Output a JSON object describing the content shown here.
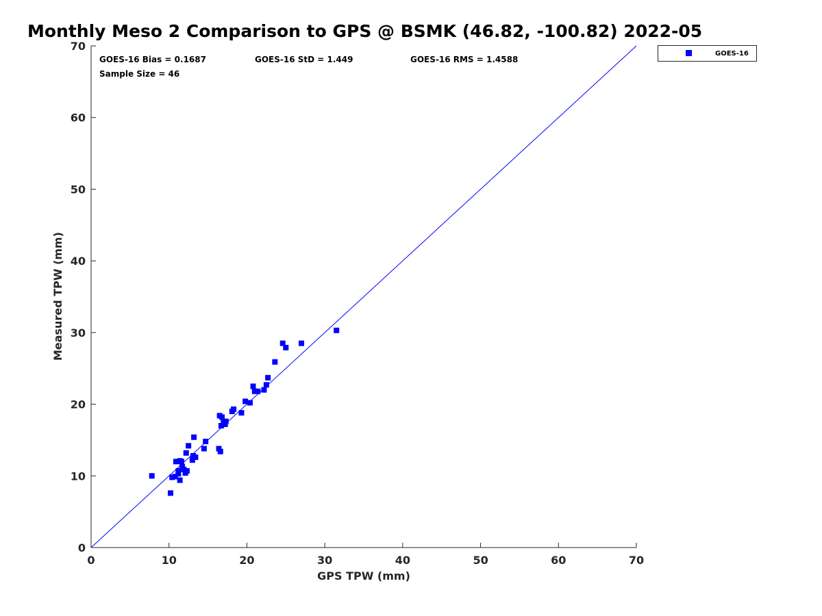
{
  "chart_data": {
    "type": "scatter",
    "title": "Monthly Meso 2 Comparison to GPS @ BSMK (46.82, -100.82) 2022-05",
    "xlabel": "GPS TPW (mm)",
    "ylabel": "Measured TPW (mm)",
    "xlim": [
      0,
      70
    ],
    "ylim": [
      0,
      70
    ],
    "xticks": [
      0,
      10,
      20,
      30,
      40,
      50,
      60,
      70
    ],
    "yticks": [
      0,
      10,
      20,
      30,
      40,
      50,
      60,
      70
    ],
    "grid": false,
    "legend_position": "top-right-outside",
    "reference_line": {
      "from": [
        0,
        0
      ],
      "to": [
        70,
        70
      ],
      "color": "#0000ff"
    },
    "stats": {
      "bias": "GOES-16 Bias = 0.1687",
      "std": "GOES-16 StD = 1.449",
      "rms": "GOES-16 RMS = 1.4588",
      "sample": "Sample Size = 46"
    },
    "series": [
      {
        "name": "GOES-16",
        "color": "#0000ff",
        "marker": "square",
        "points": [
          [
            7.8,
            10.0
          ],
          [
            10.2,
            7.6
          ],
          [
            10.4,
            9.8
          ],
          [
            10.8,
            9.9
          ],
          [
            10.9,
            12.0
          ],
          [
            11.2,
            10.3
          ],
          [
            11.2,
            10.7
          ],
          [
            11.4,
            9.4
          ],
          [
            11.4,
            12.1
          ],
          [
            11.6,
            12.0
          ],
          [
            11.7,
            11.3
          ],
          [
            11.9,
            10.9
          ],
          [
            12.1,
            10.4
          ],
          [
            12.2,
            13.2
          ],
          [
            12.3,
            10.7
          ],
          [
            12.5,
            14.2
          ],
          [
            13.0,
            12.2
          ],
          [
            13.1,
            12.8
          ],
          [
            13.2,
            15.4
          ],
          [
            13.4,
            12.6
          ],
          [
            14.5,
            13.8
          ],
          [
            14.7,
            14.8
          ],
          [
            16.4,
            13.8
          ],
          [
            16.5,
            18.4
          ],
          [
            16.6,
            13.4
          ],
          [
            16.7,
            17.0
          ],
          [
            16.8,
            18.2
          ],
          [
            17.0,
            17.6
          ],
          [
            17.2,
            17.2
          ],
          [
            17.3,
            17.6
          ],
          [
            18.1,
            19.0
          ],
          [
            18.3,
            19.3
          ],
          [
            19.3,
            18.8
          ],
          [
            19.8,
            20.4
          ],
          [
            20.4,
            20.2
          ],
          [
            20.8,
            22.5
          ],
          [
            21.0,
            21.8
          ],
          [
            21.4,
            21.8
          ],
          [
            22.2,
            22.0
          ],
          [
            22.5,
            22.7
          ],
          [
            22.7,
            23.7
          ],
          [
            23.6,
            25.9
          ],
          [
            24.6,
            28.5
          ],
          [
            25.0,
            27.9
          ],
          [
            27.0,
            28.5
          ],
          [
            31.5,
            30.3
          ]
        ]
      }
    ]
  }
}
